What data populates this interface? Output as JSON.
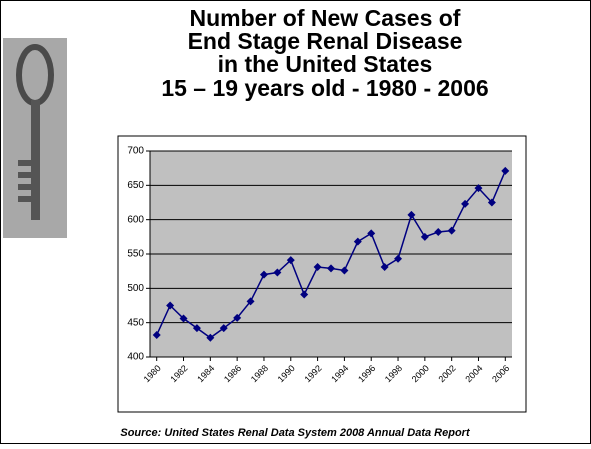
{
  "chart_data": {
    "type": "line",
    "title_lines": [
      "Number of New Cases of",
      "End Stage Renal Disease",
      "in the United States",
      "15 – 19 years old - 1980 - 2006"
    ],
    "source": "Source: United States Renal Data System 2008 Annual Data Report",
    "x": [
      1980,
      1981,
      1982,
      1983,
      1984,
      1985,
      1986,
      1987,
      1988,
      1989,
      1990,
      1991,
      1992,
      1993,
      1994,
      1995,
      1996,
      1997,
      1998,
      1999,
      2000,
      2001,
      2002,
      2003,
      2004,
      2005,
      2006
    ],
    "values": [
      432,
      475,
      456,
      442,
      428,
      442,
      457,
      481,
      520,
      523,
      541,
      491,
      531,
      529,
      526,
      568,
      580,
      531,
      543,
      607,
      575,
      582,
      584,
      623,
      646,
      625,
      671
    ],
    "color": "#000080",
    "xlim": [
      1979.5,
      2006.5
    ],
    "xticks": [
      1980,
      1982,
      1984,
      1986,
      1988,
      1990,
      1992,
      1994,
      1996,
      1998,
      2000,
      2002,
      2004,
      2006
    ],
    "ylim": [
      400,
      700
    ],
    "yticks": [
      400,
      450,
      500,
      550,
      600,
      650,
      700
    ],
    "grid": true
  }
}
